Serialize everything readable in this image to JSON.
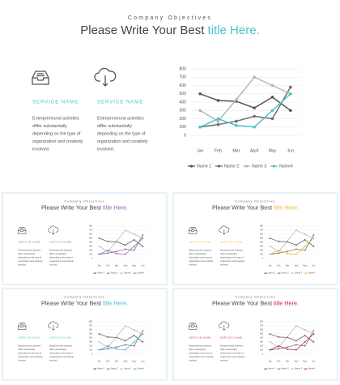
{
  "slide": {
    "kicker": "Company Objectives",
    "title_main": "Please Write Your Best ",
    "title_accent": "title Here.",
    "services": [
      {
        "name": "SERVICE NAME",
        "lines": [
          "Entrepreneural activities",
          "differ substantially",
          "depending on the type of",
          "organization and creativity",
          "involved."
        ]
      },
      {
        "name": "SERVICE NAME",
        "lines": [
          "Entrepreneural activities",
          "differ substantially",
          "depending on the type of",
          "organization and creativity",
          "involved."
        ]
      }
    ],
    "accent": "#4cc3c9",
    "variant_accents": [
      "#9b59b6",
      "#f0b429",
      "#3fb8d0",
      "#c2185b"
    ]
  },
  "chart_data": {
    "type": "line",
    "categories": [
      "Jan",
      "Feb",
      "Mar",
      "April",
      "May",
      "Jun"
    ],
    "ylim": [
      0,
      800
    ],
    "yticks": [
      0,
      100,
      200,
      300,
      400,
      500,
      600,
      700,
      800
    ],
    "grid": true,
    "legend": "bottom",
    "series": [
      {
        "name": "Name 1",
        "color": "#555555",
        "values": [
          500,
          420,
          410,
          330,
          460,
          300
        ]
      },
      {
        "name": "Name 2",
        "color": "#6e6e6e",
        "values": [
          100,
          130,
          170,
          230,
          200,
          580
        ]
      },
      {
        "name": "Name 3",
        "color": "#b5b5b5",
        "values": [
          300,
          170,
          430,
          700,
          600,
          500
        ]
      },
      {
        "name": "Name4",
        "color": "#4cc3c9",
        "values": [
          100,
          200,
          120,
          100,
          300,
          500
        ]
      }
    ]
  }
}
